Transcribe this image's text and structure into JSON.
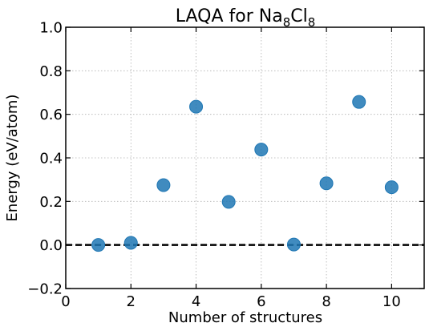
{
  "chart_data": {
    "type": "scatter",
    "title": {
      "text": "LAQA for Na",
      "sub1": "8",
      "mid": "Cl",
      "sub2": "8"
    },
    "xlabel": "Number of structures",
    "ylabel": "Energy (eV/atom)",
    "xlim": [
      0,
      11
    ],
    "ylim": [
      -0.2,
      1.0
    ],
    "xticks": [
      0,
      2,
      4,
      6,
      8,
      10
    ],
    "xtick_labels": [
      "0",
      "2",
      "4",
      "6",
      "8",
      "10"
    ],
    "yticks": [
      -0.2,
      0.0,
      0.2,
      0.4,
      0.6,
      0.8,
      1.0
    ],
    "ytick_labels": [
      "−0.2",
      "0.0",
      "0.2",
      "0.4",
      "0.6",
      "0.8",
      "1.0"
    ],
    "grid": true,
    "reference_line": {
      "y": 0.0,
      "style": "dashed",
      "color": "#000000"
    },
    "series": [
      {
        "color": "#1f77b4",
        "x": [
          1,
          2,
          3,
          4,
          5,
          6,
          7,
          8,
          9,
          10
        ],
        "y": [
          0.0,
          0.01,
          0.275,
          0.635,
          0.198,
          0.438,
          0.002,
          0.283,
          0.657,
          0.265
        ]
      }
    ]
  }
}
